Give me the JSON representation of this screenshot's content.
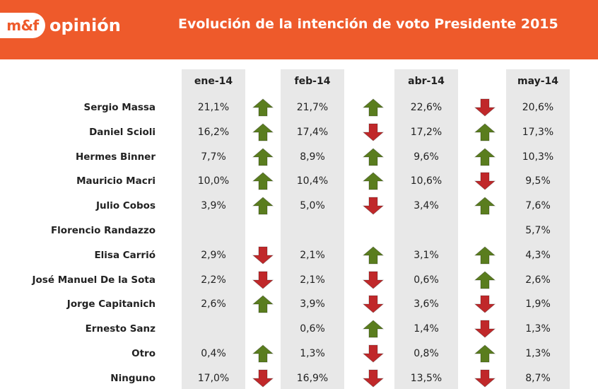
{
  "header": {
    "logo_mark": "m&f",
    "logo_text": "opinión",
    "title": "Evolución de la intención de voto Presidente 2015"
  },
  "colors": {
    "header_bg": "#ee5a2b",
    "column_bg": "#e8e8e8",
    "arrow_up": "#5a7d1e",
    "arrow_down": "#c0282a"
  },
  "chart_data": {
    "type": "table",
    "title": "Evolución de la intención de voto Presidente 2015",
    "columns": [
      "ene-14",
      "feb-14",
      "abr-14",
      "may-14"
    ],
    "rows": [
      {
        "name": "Sergio Massa",
        "values": [
          "21,1%",
          "21,7%",
          "22,6%",
          "20,6%"
        ],
        "trends": [
          "up",
          "up",
          "down"
        ]
      },
      {
        "name": "Daniel Scioli",
        "values": [
          "16,2%",
          "17,4%",
          "17,2%",
          "17,3%"
        ],
        "trends": [
          "up",
          "down",
          "up"
        ]
      },
      {
        "name": "Hermes Binner",
        "values": [
          "7,7%",
          "8,9%",
          "9,6%",
          "10,3%"
        ],
        "trends": [
          "up",
          "up",
          "up"
        ]
      },
      {
        "name": "Mauricio Macri",
        "values": [
          "10,0%",
          "10,4%",
          "10,6%",
          "9,5%"
        ],
        "trends": [
          "up",
          "up",
          "down"
        ]
      },
      {
        "name": "Julio Cobos",
        "values": [
          "3,9%",
          "5,0%",
          "3,4%",
          "7,6%"
        ],
        "trends": [
          "up",
          "down",
          "up"
        ]
      },
      {
        "name": "Florencio Randazzo",
        "values": [
          "",
          "",
          "",
          "5,7%"
        ],
        "trends": [
          "",
          "",
          ""
        ]
      },
      {
        "name": "Elisa Carrió",
        "values": [
          "2,9%",
          "2,1%",
          "3,1%",
          "4,3%"
        ],
        "trends": [
          "down",
          "up",
          "up"
        ]
      },
      {
        "name": "José Manuel De la Sota",
        "values": [
          "2,2%",
          "2,1%",
          "0,6%",
          "2,6%"
        ],
        "trends": [
          "down",
          "down",
          "up"
        ]
      },
      {
        "name": "Jorge Capitanich",
        "values": [
          "2,6%",
          "3,9%",
          "3,6%",
          "1,9%"
        ],
        "trends": [
          "up",
          "down",
          "down"
        ]
      },
      {
        "name": "Ernesto Sanz",
        "values": [
          "",
          "0,6%",
          "1,4%",
          "1,3%"
        ],
        "trends": [
          "",
          "up",
          "down"
        ]
      },
      {
        "name": "Otro",
        "values": [
          "0,4%",
          "1,3%",
          "0,8%",
          "1,3%"
        ],
        "trends": [
          "up",
          "down",
          "up"
        ]
      },
      {
        "name": "Ninguno",
        "values": [
          "17,0%",
          "16,9%",
          "13,5%",
          "8,7%"
        ],
        "trends": [
          "down",
          "down",
          "down"
        ]
      }
    ]
  }
}
